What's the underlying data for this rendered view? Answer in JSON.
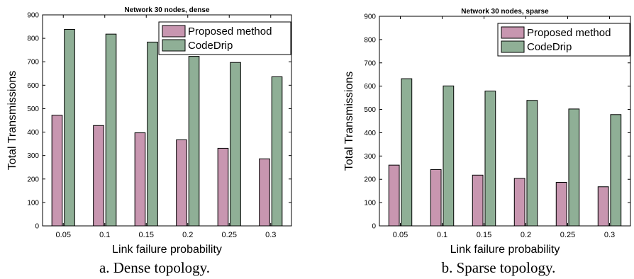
{
  "colors": {
    "proposed": "#c896b0",
    "codedrip": "#8faf96",
    "axis": "#000000"
  },
  "chart_data": [
    {
      "type": "bar",
      "title": "Network 30 nodes, dense",
      "xlabel": "Link failure probability",
      "ylabel": "Total Transmissions",
      "categories": [
        "0.05",
        "0.1",
        "0.15",
        "0.2",
        "0.25",
        "0.3"
      ],
      "yticks": [
        "0",
        "100",
        "200",
        "300",
        "400",
        "500",
        "600",
        "700",
        "800",
        "900"
      ],
      "ylim": [
        0,
        900
      ],
      "legend_position": "top-right",
      "series": [
        {
          "name": "Proposed method",
          "values": [
            472,
            428,
            397,
            367,
            331,
            286
          ]
        },
        {
          "name": "CodeDrip",
          "values": [
            838,
            818,
            784,
            723,
            697,
            636
          ]
        }
      ],
      "caption": "a. Dense topology."
    },
    {
      "type": "bar",
      "title": "Network 30 nodes, sparse",
      "xlabel": "Link failure probability",
      "ylabel": "Total Transmissions",
      "categories": [
        "0.05",
        "0.1",
        "0.15",
        "0.2",
        "0.25",
        "0.3"
      ],
      "yticks": [
        "0",
        "100",
        "200",
        "300",
        "400",
        "500",
        "600",
        "700",
        "800",
        "900"
      ],
      "ylim": [
        0,
        900
      ],
      "legend_position": "top-right",
      "series": [
        {
          "name": "Proposed method",
          "values": [
            261,
            242,
            218,
            204,
            187,
            168
          ]
        },
        {
          "name": "CodeDrip",
          "values": [
            632,
            601,
            579,
            539,
            502,
            478
          ]
        }
      ],
      "caption": "b. Sparse topology."
    }
  ]
}
